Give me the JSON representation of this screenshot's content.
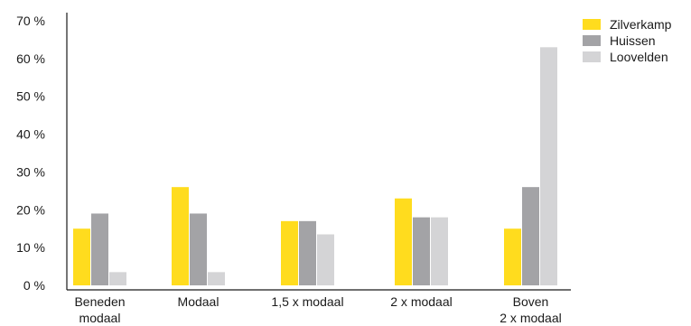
{
  "chart_data": {
    "type": "bar",
    "categories": [
      [
        "Beneden",
        "modaal"
      ],
      [
        "Modaal"
      ],
      [
        "1,5 x modaal"
      ],
      [
        "2 x modaal"
      ],
      [
        "Boven",
        "2 x modaal"
      ]
    ],
    "series": [
      {
        "name": "Zilverkamp",
        "color": "#FFDC1E",
        "values": [
          15,
          26,
          17,
          23,
          15
        ]
      },
      {
        "name": "Huissen",
        "color": "#A3A3A6",
        "values": [
          19,
          19,
          17,
          18,
          26
        ]
      },
      {
        "name": "Loovelden",
        "color": "#D4D4D6",
        "values": [
          3.5,
          3.5,
          13.5,
          18,
          63
        ]
      }
    ],
    "yticks": [
      "0 %",
      "10 %",
      "20 %",
      "30 %",
      "40 %",
      "50 %",
      "60 %",
      "70 %"
    ],
    "ylim": [
      0,
      70
    ],
    "legend_position": "top-right",
    "grid": false
  }
}
